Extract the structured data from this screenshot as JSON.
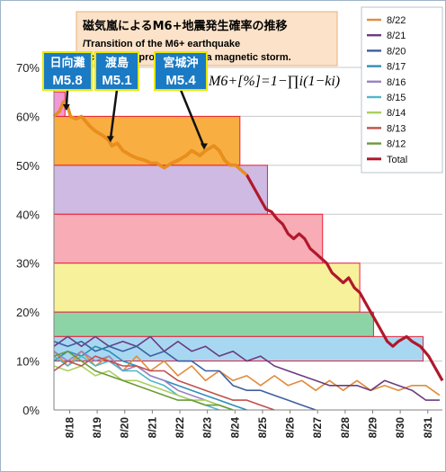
{
  "chart_data": {
    "type": "line",
    "title": "磁気嵐によるM6+地震発生確率の推移",
    "subtitle": "/Transition of the M6+ earthquake occurrence probability by a magnetic storm.",
    "formula": "M6+[%]=1−∏i(1−ki)",
    "y_ticks": [
      "0%",
      "10%",
      "20%",
      "30%",
      "40%",
      "50%",
      "60%",
      "70%"
    ],
    "ylim": [
      0,
      70
    ],
    "x_ticks": [
      "8/18",
      "8/19",
      "8/20",
      "8/21",
      "8/22",
      "8/23",
      "8/24",
      "8/25",
      "8/26",
      "8/27",
      "8/28",
      "8/29",
      "8/30",
      "8/31"
    ],
    "x_tick_values": [
      17.57,
      18.57,
      19.57,
      20.57,
      21.57,
      22.57,
      23.57,
      24.57,
      25.57,
      26.57,
      27.57,
      28.57,
      29.57,
      30.57
    ],
    "xlim": [
      17,
      31.1
    ],
    "legend_position": "right",
    "series": [
      {
        "name": "8/22",
        "color": "#e08c3c",
        "width": 1.6,
        "points": [
          [
            17,
            12
          ],
          [
            17.5,
            9
          ],
          [
            18,
            12
          ],
          [
            18.5,
            9
          ],
          [
            19,
            11
          ],
          [
            19.5,
            8
          ],
          [
            20,
            11
          ],
          [
            20.5,
            8
          ],
          [
            21,
            10
          ],
          [
            21.5,
            7
          ],
          [
            22,
            9
          ],
          [
            22.5,
            6
          ],
          [
            23,
            8
          ],
          [
            23.5,
            6
          ],
          [
            24,
            7
          ],
          [
            24.5,
            5
          ],
          [
            25,
            7
          ],
          [
            25.5,
            5
          ],
          [
            26,
            6
          ],
          [
            26.5,
            4
          ],
          [
            27,
            6
          ],
          [
            27.5,
            4
          ],
          [
            28,
            6
          ],
          [
            28.5,
            4
          ],
          [
            29,
            5
          ],
          [
            29.5,
            4
          ],
          [
            30,
            5
          ],
          [
            30.5,
            5
          ],
          [
            31,
            3
          ]
        ]
      },
      {
        "name": "8/21",
        "color": "#6a3d80",
        "width": 1.6,
        "points": [
          [
            17,
            13
          ],
          [
            17.5,
            15
          ],
          [
            18,
            13
          ],
          [
            18.5,
            15
          ],
          [
            19,
            13
          ],
          [
            19.5,
            14
          ],
          [
            20,
            13
          ],
          [
            20.5,
            15
          ],
          [
            21,
            12
          ],
          [
            21.5,
            14
          ],
          [
            22,
            12
          ],
          [
            22.5,
            13
          ],
          [
            23,
            11
          ],
          [
            23.5,
            12
          ],
          [
            24,
            10
          ],
          [
            24.5,
            11
          ],
          [
            25,
            9
          ],
          [
            25.5,
            8
          ],
          [
            26,
            7
          ],
          [
            26.5,
            6
          ],
          [
            27,
            5
          ],
          [
            27.5,
            5
          ],
          [
            28,
            5
          ],
          [
            28.5,
            4
          ],
          [
            29,
            6
          ],
          [
            29.5,
            5
          ],
          [
            30,
            4
          ],
          [
            30.5,
            2
          ],
          [
            31,
            2
          ]
        ]
      },
      {
        "name": "8/20",
        "color": "#3d5fa0",
        "width": 1.6,
        "points": [
          [
            17,
            14
          ],
          [
            17.5,
            13
          ],
          [
            18,
            14
          ],
          [
            18.5,
            12
          ],
          [
            19,
            13
          ],
          [
            19.5,
            12
          ],
          [
            20,
            13
          ],
          [
            20.5,
            11
          ],
          [
            21,
            12
          ],
          [
            21.5,
            10
          ],
          [
            22,
            10
          ],
          [
            22.5,
            8
          ],
          [
            23,
            8
          ],
          [
            23.5,
            5
          ],
          [
            24,
            4
          ],
          [
            24.5,
            4
          ],
          [
            25,
            3
          ],
          [
            25.5,
            2
          ],
          [
            26,
            1
          ],
          [
            26.5,
            0
          ]
        ]
      },
      {
        "name": "8/17",
        "color": "#2b90b5",
        "width": 1.6,
        "points": [
          [
            17,
            10
          ],
          [
            17.5,
            12
          ],
          [
            18,
            11
          ],
          [
            18.5,
            13
          ],
          [
            19,
            12
          ],
          [
            19.5,
            10
          ],
          [
            20,
            9
          ],
          [
            20.5,
            7
          ],
          [
            21,
            6
          ],
          [
            21.5,
            5
          ],
          [
            22,
            4
          ],
          [
            22.5,
            3
          ],
          [
            23,
            2
          ],
          [
            23.5,
            1
          ],
          [
            24,
            0
          ]
        ]
      },
      {
        "name": "8/16",
        "color": "#9b82c0",
        "width": 1.6,
        "points": [
          [
            17,
            12
          ],
          [
            17.5,
            10
          ],
          [
            18,
            12
          ],
          [
            18.5,
            10
          ],
          [
            19,
            11
          ],
          [
            19.5,
            8
          ],
          [
            20,
            9
          ],
          [
            20.5,
            7
          ],
          [
            21,
            6
          ],
          [
            21.5,
            4
          ],
          [
            22,
            3
          ],
          [
            22.5,
            2
          ],
          [
            23,
            1
          ],
          [
            23.5,
            0
          ]
        ]
      },
      {
        "name": "8/15",
        "color": "#4fb7c9",
        "width": 1.6,
        "points": [
          [
            17,
            11
          ],
          [
            17.5,
            9
          ],
          [
            18,
            11
          ],
          [
            18.5,
            9
          ],
          [
            19,
            10
          ],
          [
            19.5,
            8
          ],
          [
            20,
            8
          ],
          [
            20.5,
            6
          ],
          [
            21,
            5
          ],
          [
            21.5,
            3
          ],
          [
            22,
            2
          ],
          [
            22.5,
            1
          ],
          [
            23,
            0
          ]
        ]
      },
      {
        "name": "8/14",
        "color": "#a9cf5e",
        "width": 1.6,
        "points": [
          [
            17,
            9
          ],
          [
            17.5,
            8
          ],
          [
            18,
            9
          ],
          [
            18.5,
            7
          ],
          [
            19,
            8
          ],
          [
            19.5,
            6
          ],
          [
            20,
            6
          ],
          [
            20.5,
            5
          ],
          [
            21,
            4
          ],
          [
            21.5,
            3
          ],
          [
            22,
            2
          ],
          [
            22.5,
            2
          ],
          [
            23,
            1
          ],
          [
            23.5,
            0
          ]
        ]
      },
      {
        "name": "8/13",
        "color": "#c0504d",
        "width": 1.6,
        "points": [
          [
            17,
            8
          ],
          [
            17.5,
            10
          ],
          [
            18,
            9
          ],
          [
            18.5,
            11
          ],
          [
            19,
            10
          ],
          [
            19.5,
            9
          ],
          [
            20,
            9
          ],
          [
            20.5,
            8
          ],
          [
            21,
            8
          ],
          [
            21.5,
            6
          ],
          [
            22,
            5
          ],
          [
            22.5,
            4
          ],
          [
            23,
            3
          ],
          [
            23.5,
            2
          ],
          [
            24,
            2
          ],
          [
            24.5,
            1
          ],
          [
            25,
            0
          ]
        ]
      },
      {
        "name": "8/12",
        "color": "#6a9a3a",
        "width": 1.6,
        "points": [
          [
            17,
            11
          ],
          [
            17.5,
            12
          ],
          [
            18,
            10
          ],
          [
            18.5,
            8
          ],
          [
            19,
            7
          ],
          [
            19.5,
            6
          ],
          [
            20,
            5
          ],
          [
            20.5,
            4
          ],
          [
            21,
            3
          ],
          [
            21.5,
            2
          ],
          [
            22,
            2
          ],
          [
            22.5,
            1
          ],
          [
            23,
            1
          ],
          [
            23.5,
            0
          ]
        ]
      },
      {
        "name": "Total",
        "color": "#b0182b",
        "width": 3.2,
        "points": [
          [
            17,
            60
          ],
          [
            17.2,
            61
          ],
          [
            17.35,
            63
          ],
          [
            17.5,
            62
          ],
          [
            17.6,
            60
          ],
          [
            17.8,
            59.5
          ],
          [
            18,
            60
          ],
          [
            18.3,
            58
          ],
          [
            18.5,
            57
          ],
          [
            18.8,
            56
          ],
          [
            19,
            55
          ],
          [
            19.1,
            54
          ],
          [
            19.3,
            54.5
          ],
          [
            19.5,
            53
          ],
          [
            19.8,
            52
          ],
          [
            20,
            51.5
          ],
          [
            20.3,
            51
          ],
          [
            20.5,
            50.5
          ],
          [
            20.7,
            50.5
          ],
          [
            21,
            49.5
          ],
          [
            21.3,
            50.5
          ],
          [
            21.5,
            51
          ],
          [
            21.8,
            52
          ],
          [
            22,
            53
          ],
          [
            22.3,
            52
          ],
          [
            22.5,
            53
          ],
          [
            22.8,
            54
          ],
          [
            23,
            53
          ],
          [
            23.2,
            51
          ],
          [
            23.4,
            50
          ],
          [
            23.6,
            50
          ],
          [
            23.8,
            49
          ],
          [
            24,
            48
          ],
          [
            24.3,
            45
          ],
          [
            24.5,
            43
          ],
          [
            24.7,
            41
          ],
          [
            24.9,
            40.5
          ],
          [
            25.1,
            39
          ],
          [
            25.3,
            38
          ],
          [
            25.5,
            36
          ],
          [
            25.7,
            35
          ],
          [
            25.9,
            36
          ],
          [
            26.1,
            35
          ],
          [
            26.3,
            33
          ],
          [
            26.5,
            32
          ],
          [
            26.7,
            31
          ],
          [
            26.9,
            30
          ],
          [
            27.1,
            28
          ],
          [
            27.3,
            27
          ],
          [
            27.5,
            26
          ],
          [
            27.7,
            27
          ],
          [
            27.9,
            25
          ],
          [
            28.1,
            24
          ],
          [
            28.3,
            22
          ],
          [
            28.5,
            20
          ],
          [
            28.7,
            18
          ],
          [
            28.9,
            16
          ],
          [
            29.1,
            14
          ],
          [
            29.3,
            13
          ],
          [
            29.5,
            14
          ],
          [
            29.8,
            15
          ],
          [
            30,
            14
          ],
          [
            30.3,
            13
          ],
          [
            30.6,
            11
          ],
          [
            30.9,
            8
          ],
          [
            31.1,
            6
          ]
        ]
      }
    ],
    "bands": [
      {
        "x": [
          17,
          23.75
        ],
        "y": [
          50,
          60
        ],
        "color": "#f7a52c"
      },
      {
        "x": [
          17,
          24.75
        ],
        "y": [
          40,
          50
        ],
        "color": "#c9b3e0"
      },
      {
        "x": [
          17,
          26.75
        ],
        "y": [
          30,
          40
        ],
        "color": "#f7a3ad"
      },
      {
        "x": [
          17,
          28.1
        ],
        "y": [
          20,
          30
        ],
        "color": "#f7f090"
      },
      {
        "x": [
          17,
          28.6
        ],
        "y": [
          15,
          20
        ],
        "color": "#7fcf9c"
      },
      {
        "x": [
          17,
          30.4
        ],
        "y": [
          10,
          15
        ],
        "color": "#9fd4f0"
      },
      {
        "x": [
          17,
          17.4
        ],
        "y": [
          60,
          65
        ],
        "color": "#f08ed0"
      }
    ],
    "annotations": [
      {
        "place": "日向灘",
        "magnitude": "M5.8"
      },
      {
        "place": "渡島",
        "magnitude": "M5.1"
      },
      {
        "place": "宮城沖",
        "magnitude": "M5.4"
      }
    ]
  }
}
